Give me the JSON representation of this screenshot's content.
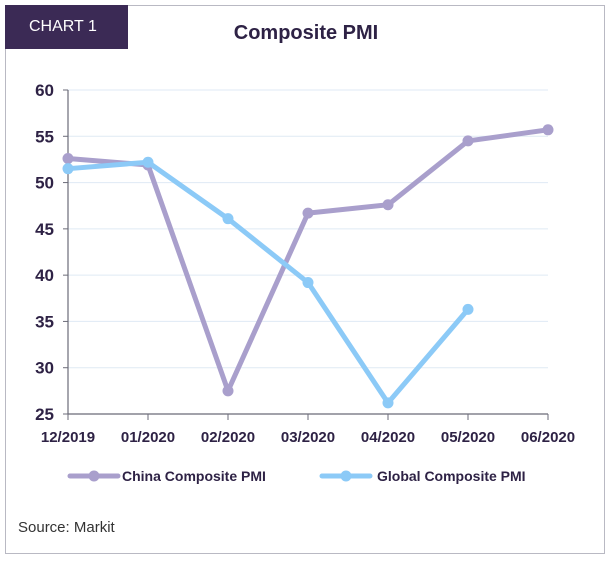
{
  "badge": {
    "label": "CHART 1"
  },
  "source": "Source: Markit",
  "chart_data": {
    "type": "line",
    "title": "Composite PMI",
    "xlabel": "",
    "ylabel": "",
    "categories": [
      "12/2019",
      "01/2020",
      "02/2020",
      "03/2020",
      "04/2020",
      "05/2020",
      "06/2020"
    ],
    "ylim": [
      25,
      60
    ],
    "yticks": [
      25,
      30,
      35,
      40,
      45,
      50,
      55,
      60
    ],
    "grid": true,
    "legend": "bottom",
    "series": [
      {
        "name": "China Composite PMI",
        "color": "#a99fcc",
        "values": [
          52.6,
          51.9,
          27.5,
          46.7,
          47.6,
          54.5,
          55.7
        ]
      },
      {
        "name": "Global Composite PMI",
        "color": "#8ccaf7",
        "values": [
          51.5,
          52.2,
          46.1,
          39.2,
          26.2,
          36.3,
          null
        ]
      }
    ]
  }
}
